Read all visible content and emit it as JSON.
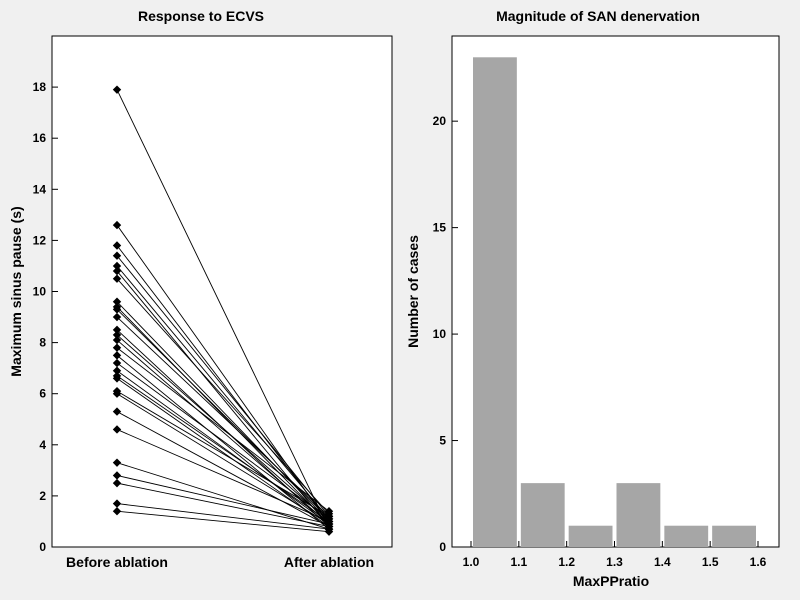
{
  "chart_data": [
    {
      "type": "line",
      "title": "Response to ECVS",
      "xlabel": "",
      "ylabel": "Maximum sinus pause (s)",
      "categories": [
        "Before ablation",
        "After ablation"
      ],
      "ylim": [
        0,
        20
      ],
      "yticks": [
        0,
        2,
        4,
        6,
        8,
        10,
        12,
        14,
        16,
        18
      ],
      "marker": "diamond",
      "color": "#000000",
      "grid": false,
      "pairs": [
        [
          17.9,
          0.7
        ],
        [
          12.6,
          0.9
        ],
        [
          11.8,
          1.0
        ],
        [
          11.4,
          1.2
        ],
        [
          11.0,
          1.1
        ],
        [
          10.8,
          0.8
        ],
        [
          10.5,
          1.3
        ],
        [
          9.6,
          1.0
        ],
        [
          9.4,
          0.9
        ],
        [
          9.3,
          1.1
        ],
        [
          9.0,
          1.2
        ],
        [
          8.5,
          0.8
        ],
        [
          8.3,
          1.0
        ],
        [
          8.1,
          0.9
        ],
        [
          7.8,
          1.4
        ],
        [
          7.5,
          0.7
        ],
        [
          7.2,
          1.1
        ],
        [
          6.9,
          0.9
        ],
        [
          6.7,
          1.0
        ],
        [
          6.6,
          0.8
        ],
        [
          6.1,
          1.2
        ],
        [
          6.0,
          0.9
        ],
        [
          5.3,
          0.8
        ],
        [
          4.6,
          1.0
        ],
        [
          3.3,
          0.7
        ],
        [
          2.8,
          0.9
        ],
        [
          2.5,
          0.8
        ],
        [
          1.7,
          0.7
        ],
        [
          1.4,
          0.6
        ]
      ]
    },
    {
      "type": "bar",
      "title": "Magnitude of SAN denervation",
      "xlabel": "MaxPPratio",
      "ylabel": "Number of cases",
      "bins": [
        [
          1.0,
          1.1
        ],
        [
          1.1,
          1.2
        ],
        [
          1.2,
          1.3
        ],
        [
          1.3,
          1.4
        ],
        [
          1.4,
          1.5
        ],
        [
          1.5,
          1.6
        ]
      ],
      "values": [
        23,
        3,
        1,
        3,
        1,
        1
      ],
      "xlim": [
        0.95,
        1.65
      ],
      "xticks": [
        "1.0",
        "1.1",
        "1.2",
        "1.3",
        "1.4",
        "1.5",
        "1.6"
      ],
      "ylim": [
        0,
        24
      ],
      "yticks": [
        0,
        5,
        10,
        15,
        20
      ],
      "bar_color": "#a6a6a6",
      "grid": false
    }
  ]
}
